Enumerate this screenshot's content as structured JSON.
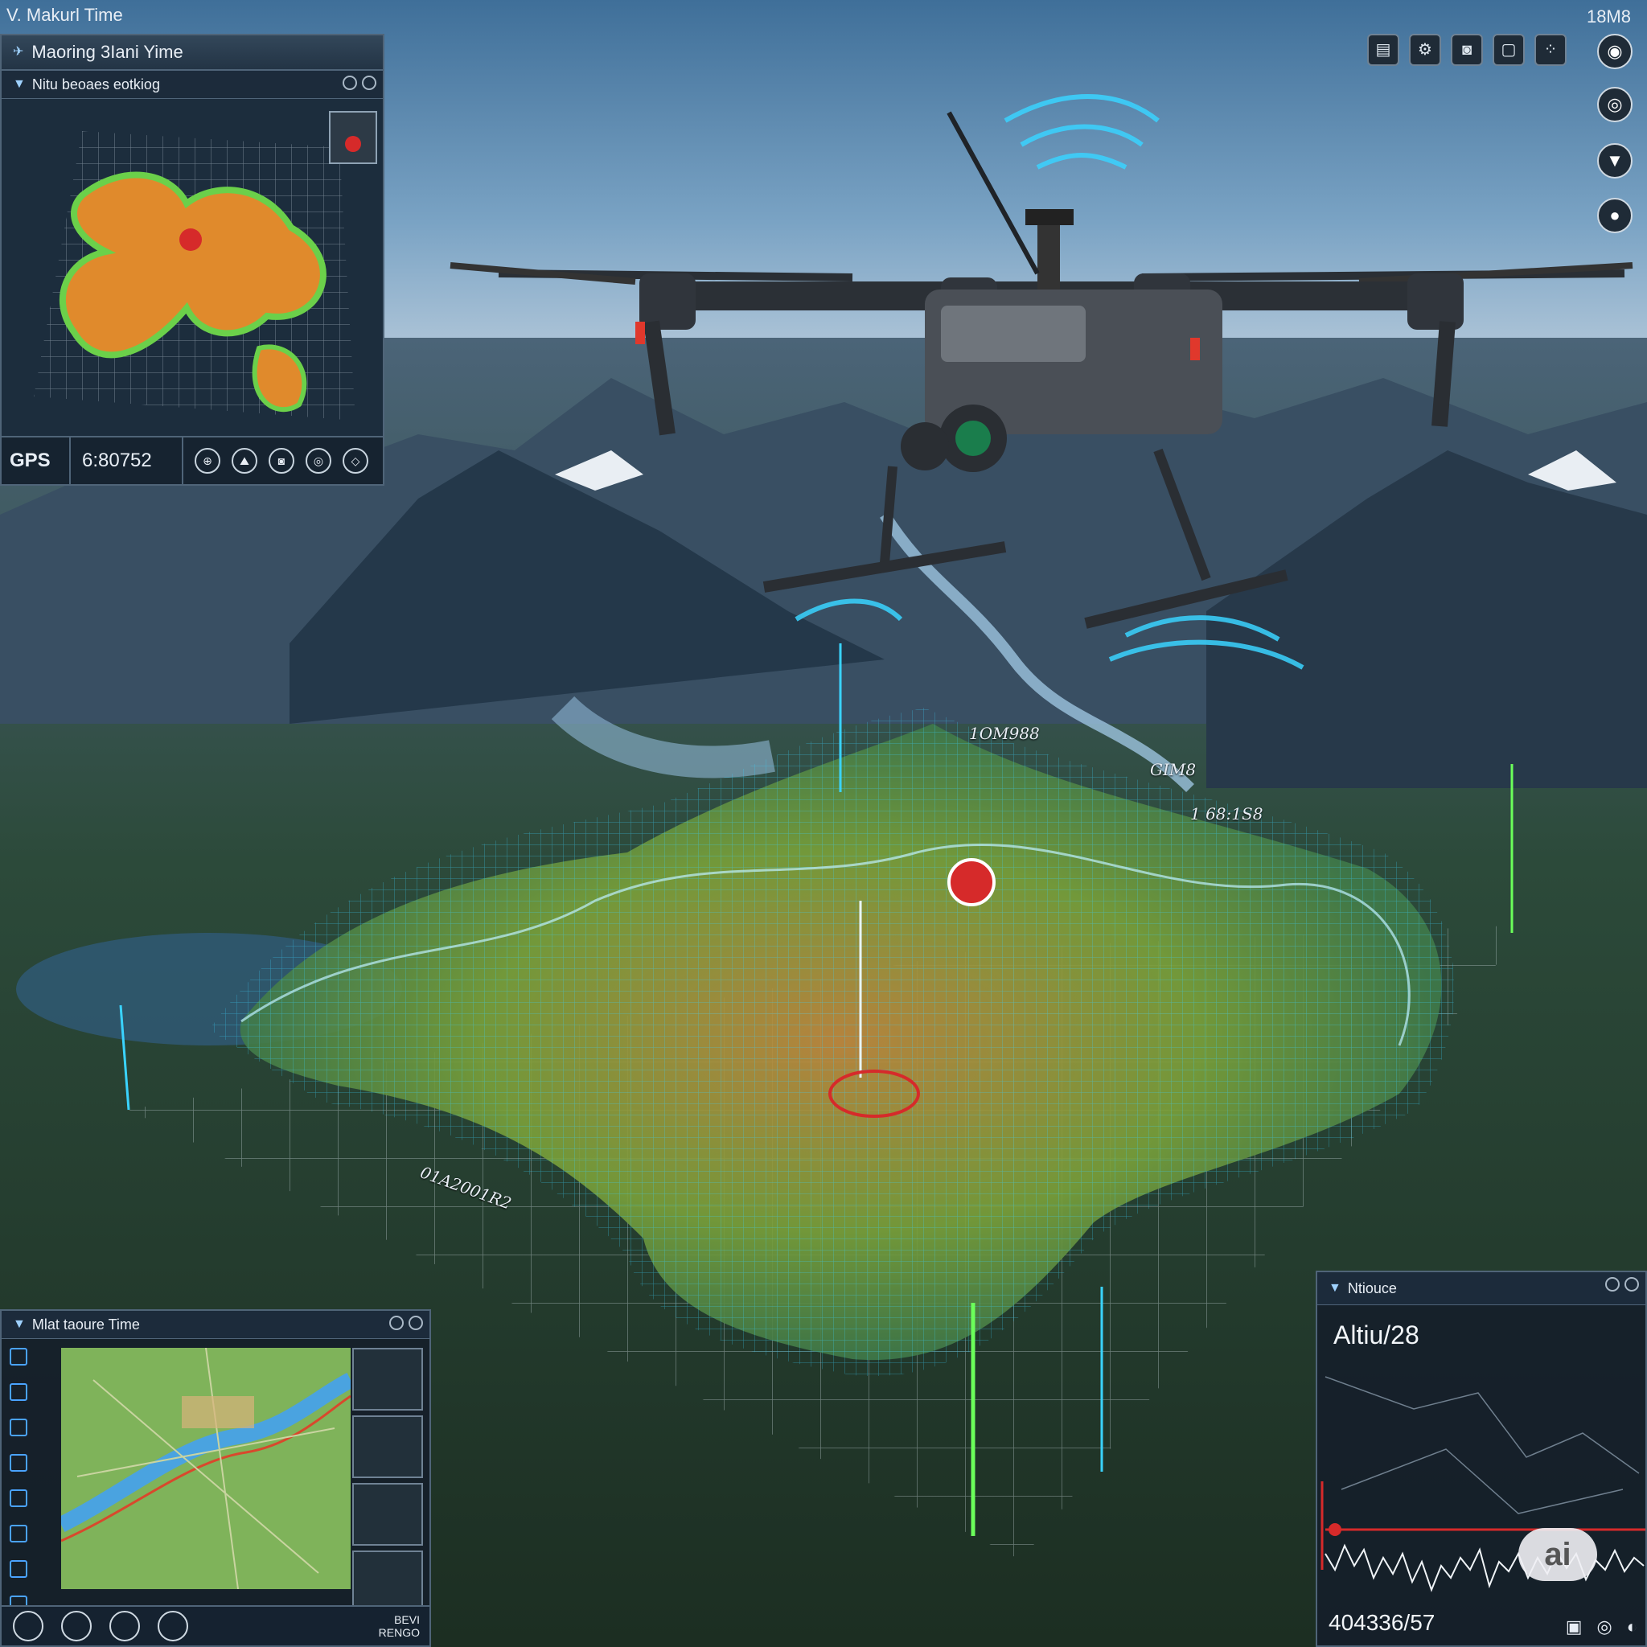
{
  "hud": {
    "top_left_label": "V. Makurl Time",
    "top_right_label": "18M8"
  },
  "top_left_panel": {
    "title": "Maoring 3Iani Yime",
    "subtitle": "Nitu beoaes eotkiog",
    "gps_label": "GPS",
    "gps_value": "6:80752"
  },
  "toolbar_icons": [
    "layer-icon",
    "settings-icon",
    "camera-icon",
    "document-icon",
    "grid-icon"
  ],
  "side_round_buttons": [
    "power-icon",
    "location-icon",
    "torch-icon",
    "record-icon"
  ],
  "terrain_labels": {
    "a": "1OM988",
    "b": "GIM8",
    "c": "1 68:1S8",
    "d": "01A2001R2"
  },
  "bottom_left_panel": {
    "title": "Mlat taoure Time",
    "footer_text_1": "BEVI",
    "footer_text_2": "RENGO"
  },
  "bottom_right_panel": {
    "title": "Ntiouce",
    "altitude_label": "Altiu/28",
    "altitude_value": "404336/57"
  },
  "watermark": "ai",
  "colors": {
    "accent_cyan": "#3ad3ff",
    "alert_red": "#d62a2a",
    "panel_bg": "#1a2836",
    "mesh_green": "#7ac94a"
  }
}
